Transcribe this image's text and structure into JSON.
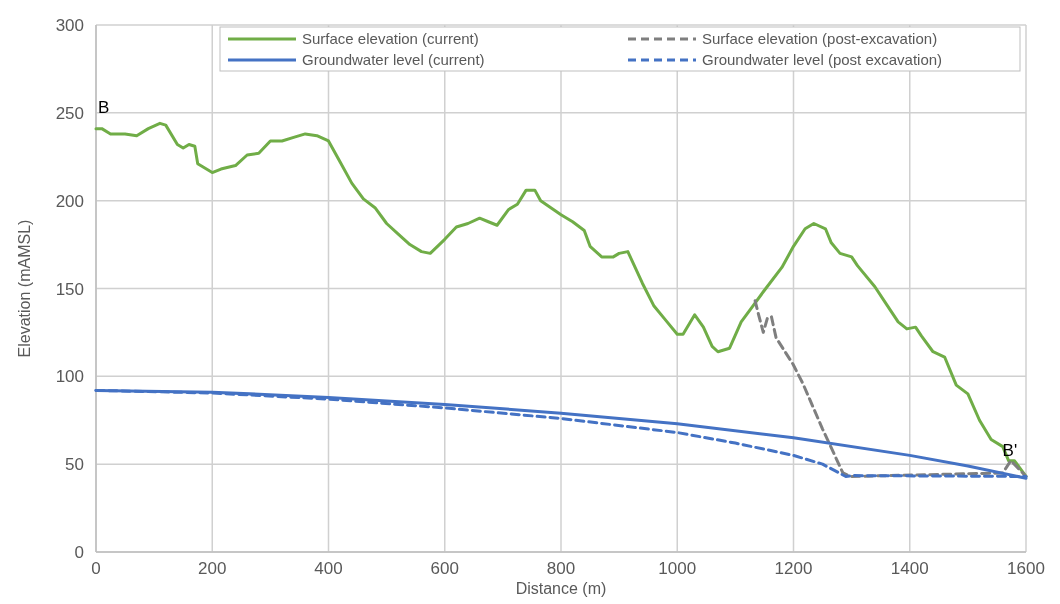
{
  "chart_data": {
    "type": "line",
    "xlabel": "Distance (m)",
    "ylabel": "Elevation (mAMSL)",
    "xlim": [
      0,
      1600
    ],
    "xticks": [
      0,
      200,
      400,
      600,
      800,
      1000,
      1200,
      1400,
      1600
    ],
    "ylim": [
      0,
      300
    ],
    "yticks": [
      0,
      50,
      100,
      150,
      200,
      250,
      300
    ],
    "grid": true,
    "legend": "top right",
    "marker": "none",
    "annotations": [
      "B",
      {
        "text": "B'",
        "x": 1570,
        "y": 58
      }
    ],
    "series": [
      {
        "name": "Surface elevation (current)",
        "color": "#70ad47",
        "line_style": "solid",
        "x": [
          0,
          10,
          25,
          50,
          70,
          90,
          110,
          120,
          140,
          150,
          160,
          170,
          175,
          200,
          215,
          240,
          260,
          280,
          300,
          320,
          340,
          360,
          380,
          400,
          420,
          440,
          460,
          480,
          500,
          520,
          540,
          560,
          575,
          600,
          620,
          640,
          660,
          675,
          690,
          710,
          725,
          740,
          755,
          765,
          800,
          820,
          840,
          850,
          870,
          890,
          900,
          915,
          940,
          960,
          980,
          1000,
          1010,
          1030,
          1045,
          1060,
          1070,
          1090,
          1110,
          1130,
          1150,
          1180,
          1200,
          1220,
          1235,
          1255,
          1265,
          1280,
          1300,
          1310,
          1340,
          1360,
          1380,
          1395,
          1410,
          1420,
          1440,
          1460,
          1480,
          1500,
          1520,
          1540,
          1560,
          1570,
          1580,
          1600
        ],
        "values": [
          241,
          241,
          238,
          238,
          237,
          241,
          244,
          243,
          232,
          230,
          232,
          231,
          221,
          216,
          218,
          220,
          226,
          227,
          234,
          234,
          236,
          238,
          237,
          234,
          222,
          210,
          201,
          196,
          187,
          181,
          175,
          171,
          170,
          178,
          185,
          187,
          190,
          188,
          186,
          195,
          198,
          206,
          206,
          200,
          192,
          188,
          183,
          174,
          168,
          168,
          170,
          171,
          153,
          140,
          132,
          124,
          124,
          135,
          128,
          117,
          114,
          116,
          131,
          140,
          149,
          162,
          174,
          184,
          187,
          184,
          176,
          170,
          168,
          163,
          151,
          141,
          131,
          127,
          128,
          123,
          114,
          111,
          95,
          90,
          75,
          64,
          60,
          52,
          52,
          43
        ]
      },
      {
        "name": "Surface elevation (post-excavation)",
        "color": "#7f7f7f",
        "line_style": "dashed",
        "x": [
          1134,
          1140,
          1148,
          1155,
          1162,
          1170,
          1199,
          1216,
          1250,
          1285,
          1298,
          1560,
          1574,
          1600
        ],
        "values": [
          143,
          135,
          125,
          133,
          134,
          122,
          107,
          96,
          70,
          45,
          43,
          45,
          52,
          43
        ]
      },
      {
        "name": "Groundwater level (current)",
        "color": "#4472c4",
        "line_style": "solid",
        "x": [
          0,
          200,
          400,
          600,
          800,
          1000,
          1200,
          1400,
          1500,
          1600
        ],
        "values": [
          92,
          91,
          88,
          84,
          79,
          73,
          65,
          55,
          49,
          42
        ]
      },
      {
        "name": "Groundwater level (post excavation)",
        "color": "#4472c4",
        "line_style": "dashed",
        "x": [
          0,
          200,
          400,
          600,
          800,
          1000,
          1100,
          1200,
          1250,
          1290,
          1300,
          1600
        ],
        "values": [
          92,
          90.5,
          87,
          82,
          76,
          68,
          62,
          55,
          50,
          43,
          43.5,
          43
        ]
      }
    ]
  }
}
